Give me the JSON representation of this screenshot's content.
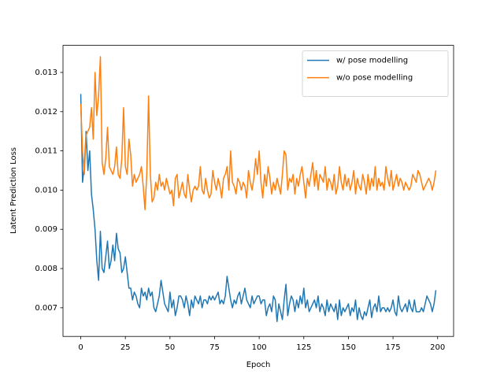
{
  "chart_data": {
    "type": "line",
    "xlabel": "Epoch",
    "ylabel": "Latent Prediction Loss",
    "x": [
      0,
      1,
      2,
      3,
      4,
      5,
      6,
      7,
      8,
      9,
      10,
      11,
      12,
      13,
      14,
      15,
      16,
      17,
      18,
      19,
      20,
      21,
      22,
      23,
      24,
      25,
      26,
      27,
      28,
      29,
      30,
      31,
      32,
      33,
      34,
      35,
      36,
      37,
      38,
      39,
      40,
      41,
      42,
      43,
      44,
      45,
      46,
      47,
      48,
      49,
      50,
      51,
      52,
      53,
      54,
      55,
      56,
      57,
      58,
      59,
      60,
      61,
      62,
      63,
      64,
      65,
      66,
      67,
      68,
      69,
      70,
      71,
      72,
      73,
      74,
      75,
      76,
      77,
      78,
      79,
      80,
      81,
      82,
      83,
      84,
      85,
      86,
      87,
      88,
      89,
      90,
      91,
      92,
      93,
      94,
      95,
      96,
      97,
      98,
      99,
      100,
      101,
      102,
      103,
      104,
      105,
      106,
      107,
      108,
      109,
      110,
      111,
      112,
      113,
      114,
      115,
      116,
      117,
      118,
      119,
      120,
      121,
      122,
      123,
      124,
      125,
      126,
      127,
      128,
      129,
      130,
      131,
      132,
      133,
      134,
      135,
      136,
      137,
      138,
      139,
      140,
      141,
      142,
      143,
      144,
      145,
      146,
      147,
      148,
      149,
      150,
      151,
      152,
      153,
      154,
      155,
      156,
      157,
      158,
      159,
      160,
      161,
      162,
      163,
      164,
      165,
      166,
      167,
      168,
      169,
      170,
      171,
      172,
      173,
      174,
      175,
      176,
      177,
      178,
      179,
      180,
      181,
      182,
      183,
      184,
      185,
      186,
      187,
      188,
      189,
      190,
      191,
      192,
      193,
      194,
      195,
      196,
      197,
      198,
      199
    ],
    "series": [
      {
        "name": "w/ pose modelling",
        "color": "#1f77b4",
        "values": [
          0.01245,
          0.0102,
          0.0106,
          0.0115,
          0.0105,
          0.011,
          0.0099,
          0.0095,
          0.009,
          0.0082,
          0.0077,
          0.00895,
          0.008,
          0.0079,
          0.0083,
          0.0087,
          0.008,
          0.0082,
          0.0086,
          0.0082,
          0.0089,
          0.0085,
          0.0084,
          0.0079,
          0.008,
          0.0083,
          0.0079,
          0.0075,
          0.0075,
          0.0072,
          0.0074,
          0.0073,
          0.0071,
          0.007,
          0.0075,
          0.0073,
          0.0074,
          0.0072,
          0.0075,
          0.0073,
          0.0074,
          0.007,
          0.0069,
          0.0071,
          0.0073,
          0.0077,
          0.0074,
          0.0071,
          0.007,
          0.0069,
          0.0074,
          0.007,
          0.0072,
          0.0068,
          0.007,
          0.0073,
          0.0073,
          0.0072,
          0.007,
          0.0073,
          0.0071,
          0.0068,
          0.0072,
          0.007,
          0.0073,
          0.0072,
          0.0071,
          0.0073,
          0.007,
          0.0072,
          0.0072,
          0.0071,
          0.0073,
          0.0072,
          0.0073,
          0.0072,
          0.0073,
          0.0074,
          0.0071,
          0.0072,
          0.0071,
          0.0073,
          0.0078,
          0.0075,
          0.0072,
          0.007,
          0.0072,
          0.0071,
          0.0073,
          0.0074,
          0.0071,
          0.0073,
          0.0075,
          0.0072,
          0.0071,
          0.007,
          0.0073,
          0.0071,
          0.0072,
          0.0073,
          0.0073,
          0.0071,
          0.0072,
          0.0072,
          0.0068,
          0.007,
          0.0071,
          0.0069,
          0.0073,
          0.0072,
          0.00665,
          0.0071,
          0.0069,
          0.0067,
          0.0072,
          0.0076,
          0.0068,
          0.0071,
          0.0073,
          0.0072,
          0.0069,
          0.0072,
          0.007,
          0.0073,
          0.0071,
          0.0075,
          0.007,
          0.0072,
          0.0069,
          0.007,
          0.0071,
          0.0072,
          0.007,
          0.0073,
          0.0069,
          0.0071,
          0.007,
          0.0068,
          0.0072,
          0.0069,
          0.0071,
          0.007,
          0.0069,
          0.0071,
          0.0067,
          0.0072,
          0.0068,
          0.007,
          0.0069,
          0.007,
          0.0071,
          0.0068,
          0.007,
          0.0069,
          0.0072,
          0.0067,
          0.007,
          0.0068,
          0.0067,
          0.0069,
          0.0068,
          0.007,
          0.0072,
          0.00675,
          0.007,
          0.0071,
          0.0069,
          0.0073,
          0.0069,
          0.007,
          0.007,
          0.0069,
          0.007,
          0.0069,
          0.007,
          0.0072,
          0.0069,
          0.0068,
          0.0073,
          0.007,
          0.0069,
          0.007,
          0.0071,
          0.0069,
          0.0072,
          0.007,
          0.0069,
          0.0072,
          0.0069,
          0.0069,
          0.0069,
          0.007,
          0.0069,
          0.0071,
          0.0073,
          0.0072,
          0.0071,
          0.0069,
          0.0071,
          0.00745
        ]
      },
      {
        "name": "w/o pose modelling",
        "color": "#ff7f0e",
        "values": [
          0.0122,
          0.011,
          0.0104,
          0.0114,
          0.0115,
          0.0116,
          0.0121,
          0.0113,
          0.013,
          0.0119,
          0.0124,
          0.0134,
          0.0107,
          0.0104,
          0.0108,
          0.0116,
          0.0106,
          0.0105,
          0.0104,
          0.0106,
          0.0111,
          0.0104,
          0.0103,
          0.0108,
          0.0121,
          0.0106,
          0.0104,
          0.0113,
          0.0109,
          0.0101,
          0.0104,
          0.0102,
          0.0103,
          0.0104,
          0.0106,
          0.0101,
          0.0095,
          0.0104,
          0.0124,
          0.0104,
          0.0097,
          0.0098,
          0.0102,
          0.01,
          0.0104,
          0.0101,
          0.0102,
          0.01,
          0.0103,
          0.0101,
          0.0099,
          0.01,
          0.0096,
          0.0103,
          0.0104,
          0.0098,
          0.01,
          0.0102,
          0.0099,
          0.0098,
          0.0104,
          0.01,
          0.0097,
          0.01,
          0.0101,
          0.01,
          0.0101,
          0.0106,
          0.01,
          0.0099,
          0.0103,
          0.01,
          0.0098,
          0.0099,
          0.0105,
          0.0102,
          0.01,
          0.0103,
          0.0101,
          0.0098,
          0.0103,
          0.0104,
          0.0106,
          0.01,
          0.011,
          0.0102,
          0.0101,
          0.0099,
          0.0103,
          0.0102,
          0.01,
          0.0102,
          0.0101,
          0.0098,
          0.0105,
          0.0102,
          0.01,
          0.0103,
          0.0108,
          0.0104,
          0.011,
          0.0102,
          0.0098,
          0.0104,
          0.0101,
          0.0106,
          0.0103,
          0.0099,
          0.0102,
          0.01,
          0.0103,
          0.0101,
          0.0099,
          0.0104,
          0.011,
          0.0109,
          0.01,
          0.0103,
          0.0102,
          0.0104,
          0.0099,
          0.0103,
          0.0101,
          0.0104,
          0.0106,
          0.0102,
          0.0098,
          0.0103,
          0.0101,
          0.0104,
          0.0107,
          0.0101,
          0.0105,
          0.01,
          0.0104,
          0.0103,
          0.0102,
          0.0106,
          0.01,
          0.0103,
          0.0102,
          0.01,
          0.0104,
          0.0099,
          0.0101,
          0.0106,
          0.0102,
          0.01,
          0.0104,
          0.0101,
          0.0103,
          0.01,
          0.0102,
          0.0105,
          0.0099,
          0.0103,
          0.0101,
          0.01,
          0.0104,
          0.0102,
          0.0099,
          0.0104,
          0.01,
          0.0103,
          0.0101,
          0.0106,
          0.01,
          0.0103,
          0.0101,
          0.0102,
          0.01,
          0.0106,
          0.0103,
          0.0101,
          0.0105,
          0.01,
          0.0102,
          0.0104,
          0.0101,
          0.0103,
          0.0102,
          0.01,
          0.0102,
          0.0101,
          0.01,
          0.0101,
          0.0104,
          0.0103,
          0.0102,
          0.0105,
          0.0104,
          0.0102,
          0.01,
          0.0101,
          0.0102,
          0.0103,
          0.0102,
          0.01,
          0.0102,
          0.0105
        ]
      }
    ],
    "xlim": [
      -9.95,
      208.95
    ],
    "xticks": [
      0,
      25,
      50,
      75,
      100,
      125,
      150,
      175,
      200
    ],
    "ylim": [
      0.00627,
      0.01369
    ],
    "yticks": [
      0.007,
      0.008,
      0.009,
      {
        "value": 0.01,
        "label": "0.010"
      },
      0.011,
      0.012,
      0.013
    ],
    "legend": "upper right"
  }
}
